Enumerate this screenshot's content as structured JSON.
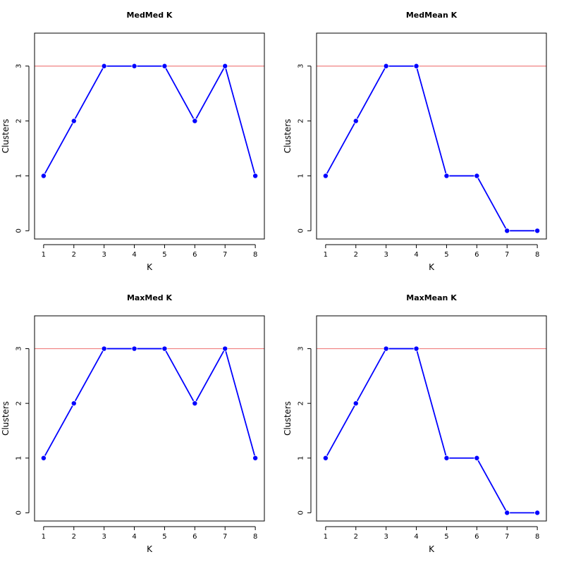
{
  "chart_data": [
    {
      "type": "line",
      "title": "MedMed K",
      "xlabel": "K",
      "ylabel": "Clusters",
      "x": [
        1,
        2,
        3,
        4,
        5,
        6,
        7,
        8
      ],
      "series": [
        {
          "values": [
            1,
            2,
            3,
            3,
            3,
            2,
            3,
            1
          ],
          "color": "#0000ff"
        }
      ],
      "hline": {
        "y": 3,
        "color": "#f08080"
      },
      "xlim": [
        0.7,
        8.3
      ],
      "ylim": [
        -0.15,
        3.6
      ],
      "xticks": [
        1,
        2,
        3,
        4,
        5,
        6,
        7,
        8
      ],
      "yticks": [
        0,
        1,
        2,
        3
      ],
      "grid": false
    },
    {
      "type": "line",
      "title": "MedMean K",
      "xlabel": "K",
      "ylabel": "Clusters",
      "x": [
        1,
        2,
        3,
        4,
        5,
        6,
        7,
        8
      ],
      "series": [
        {
          "values": [
            1,
            2,
            3,
            3,
            1,
            1,
            0,
            0
          ],
          "color": "#0000ff"
        }
      ],
      "hline": {
        "y": 3,
        "color": "#f08080"
      },
      "xlim": [
        0.7,
        8.3
      ],
      "ylim": [
        -0.15,
        3.6
      ],
      "xticks": [
        1,
        2,
        3,
        4,
        5,
        6,
        7,
        8
      ],
      "yticks": [
        0,
        1,
        2,
        3
      ],
      "grid": false
    },
    {
      "type": "line",
      "title": "MaxMed K",
      "xlabel": "K",
      "ylabel": "Clusters",
      "x": [
        1,
        2,
        3,
        4,
        5,
        6,
        7,
        8
      ],
      "series": [
        {
          "values": [
            1,
            2,
            3,
            3,
            3,
            2,
            3,
            1
          ],
          "color": "#0000ff"
        }
      ],
      "hline": {
        "y": 3,
        "color": "#f08080"
      },
      "xlim": [
        0.7,
        8.3
      ],
      "ylim": [
        -0.15,
        3.6
      ],
      "xticks": [
        1,
        2,
        3,
        4,
        5,
        6,
        7,
        8
      ],
      "yticks": [
        0,
        1,
        2,
        3
      ],
      "grid": false
    },
    {
      "type": "line",
      "title": "MaxMean K",
      "xlabel": "K",
      "ylabel": "Clusters",
      "x": [
        1,
        2,
        3,
        4,
        5,
        6,
        7,
        8
      ],
      "series": [
        {
          "values": [
            1,
            2,
            3,
            3,
            1,
            1,
            0,
            0
          ],
          "color": "#0000ff"
        }
      ],
      "hline": {
        "y": 3,
        "color": "#f08080"
      },
      "xlim": [
        0.7,
        8.3
      ],
      "ylim": [
        -0.15,
        3.6
      ],
      "xticks": [
        1,
        2,
        3,
        4,
        5,
        6,
        7,
        8
      ],
      "yticks": [
        0,
        1,
        2,
        3
      ],
      "grid": false
    }
  ]
}
